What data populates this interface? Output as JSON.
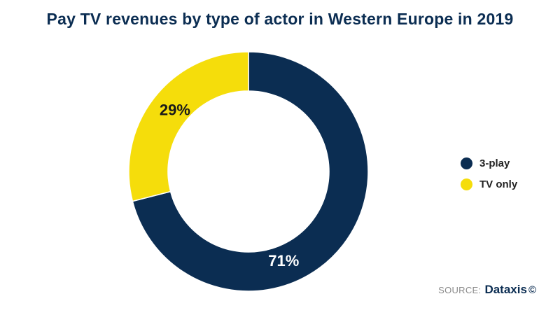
{
  "chart_data": {
    "type": "pie",
    "variant": "donut",
    "title": "Pay TV revenues by type of actor in Western Europe in 2019",
    "slices": [
      {
        "label": "3-play",
        "value": 71,
        "display": "71%",
        "color": "#0b2d52",
        "label_color": "#ffffff"
      },
      {
        "label": "TV only",
        "value": 29,
        "display": "29%",
        "color": "#f5dd0b",
        "label_color": "#1a1a1a"
      }
    ],
    "legend_placement": "right"
  },
  "source": {
    "prefix": "SOURCE:",
    "brand": "Dataxis",
    "mark": "©"
  }
}
